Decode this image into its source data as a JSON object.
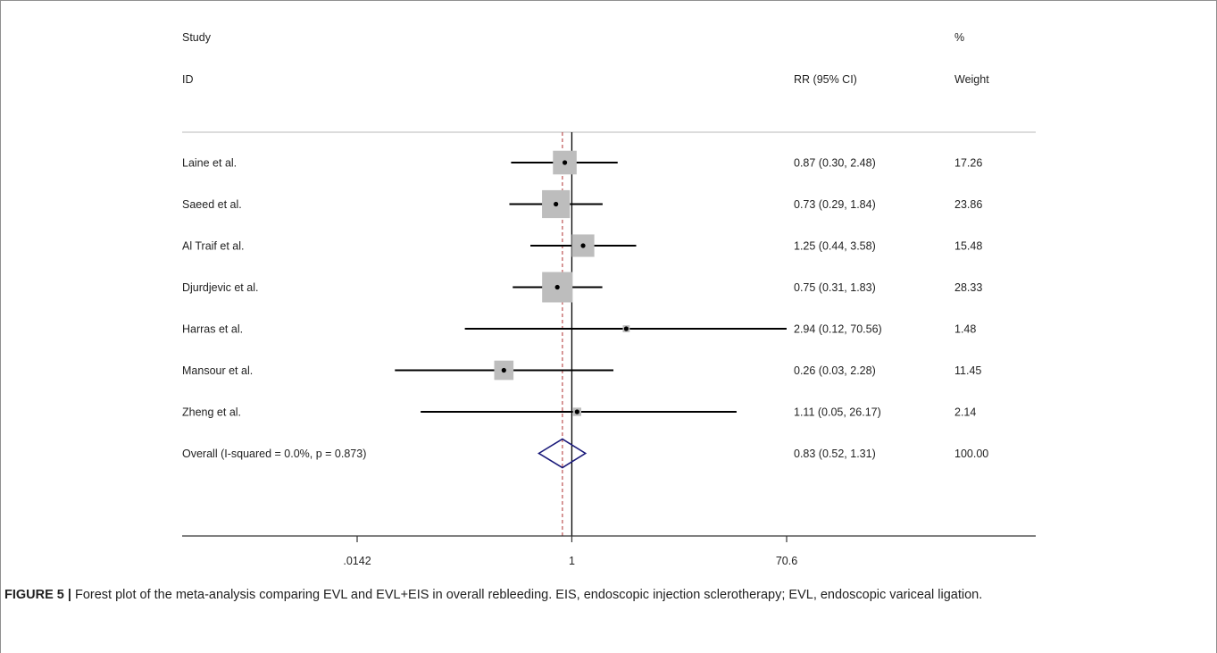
{
  "chart_data": {
    "type": "forest",
    "columns": {
      "study_header_1": "Study",
      "study_header_2": "ID",
      "effect_header": "RR (95% CI)",
      "weight_header_1": "%",
      "weight_header_2": "Weight"
    },
    "studies": [
      {
        "label": "Laine et al.",
        "rr": 0.87,
        "lo": 0.3,
        "hi": 2.48,
        "ci_text": "0.87 (0.30, 2.48)",
        "weight": 17.26,
        "weight_text": "17.26"
      },
      {
        "label": "Saeed et al.",
        "rr": 0.73,
        "lo": 0.29,
        "hi": 1.84,
        "ci_text": "0.73 (0.29, 1.84)",
        "weight": 23.86,
        "weight_text": "23.86"
      },
      {
        "label": "Al Traif et al.",
        "rr": 1.25,
        "lo": 0.44,
        "hi": 3.58,
        "ci_text": "1.25 (0.44, 3.58)",
        "weight": 15.48,
        "weight_text": "15.48"
      },
      {
        "label": "Djurdjevic et al.",
        "rr": 0.75,
        "lo": 0.31,
        "hi": 1.83,
        "ci_text": "0.75 (0.31, 1.83)",
        "weight": 28.33,
        "weight_text": "28.33"
      },
      {
        "label": "Harras et al.",
        "rr": 2.94,
        "lo": 0.12,
        "hi": 70.56,
        "ci_text": "2.94 (0.12, 70.56)",
        "weight": 1.48,
        "weight_text": "1.48"
      },
      {
        "label": "Mansour et al.",
        "rr": 0.26,
        "lo": 0.03,
        "hi": 2.28,
        "ci_text": "0.26 (0.03, 2.28)",
        "weight": 11.45,
        "weight_text": "11.45"
      },
      {
        "label": "Zheng et al.",
        "rr": 1.11,
        "lo": 0.05,
        "hi": 26.17,
        "ci_text": "1.11 (0.05, 26.17)",
        "weight": 2.14,
        "weight_text": "2.14"
      }
    ],
    "overall": {
      "label": "Overall  (I-squared = 0.0%, p = 0.873)",
      "rr": 0.83,
      "lo": 0.52,
      "hi": 1.31,
      "ci_text": "0.83 (0.52, 1.31)",
      "weight": 100.0,
      "weight_text": "100.00"
    },
    "x_axis": {
      "scale": "log",
      "range": [
        0.0142,
        70.6
      ],
      "ticks": [
        0.0142,
        1,
        70.6
      ],
      "tick_labels": [
        ".0142",
        "1",
        "70.6"
      ],
      "null_line": 1
    },
    "colors": {
      "box": "#bdbdbd",
      "line": "#000000",
      "overall_diamond": "#1a1a7a",
      "overall_dashed_line": "#b03030",
      "separator": "#c8c8c8"
    }
  },
  "caption": {
    "label": "FIGURE 5 |",
    "text": " Forest plot of the meta-analysis comparing EVL and EVL+EIS in overall rebleeding. EIS, endoscopic injection sclerotherapy; EVL, endoscopic variceal ligation."
  }
}
